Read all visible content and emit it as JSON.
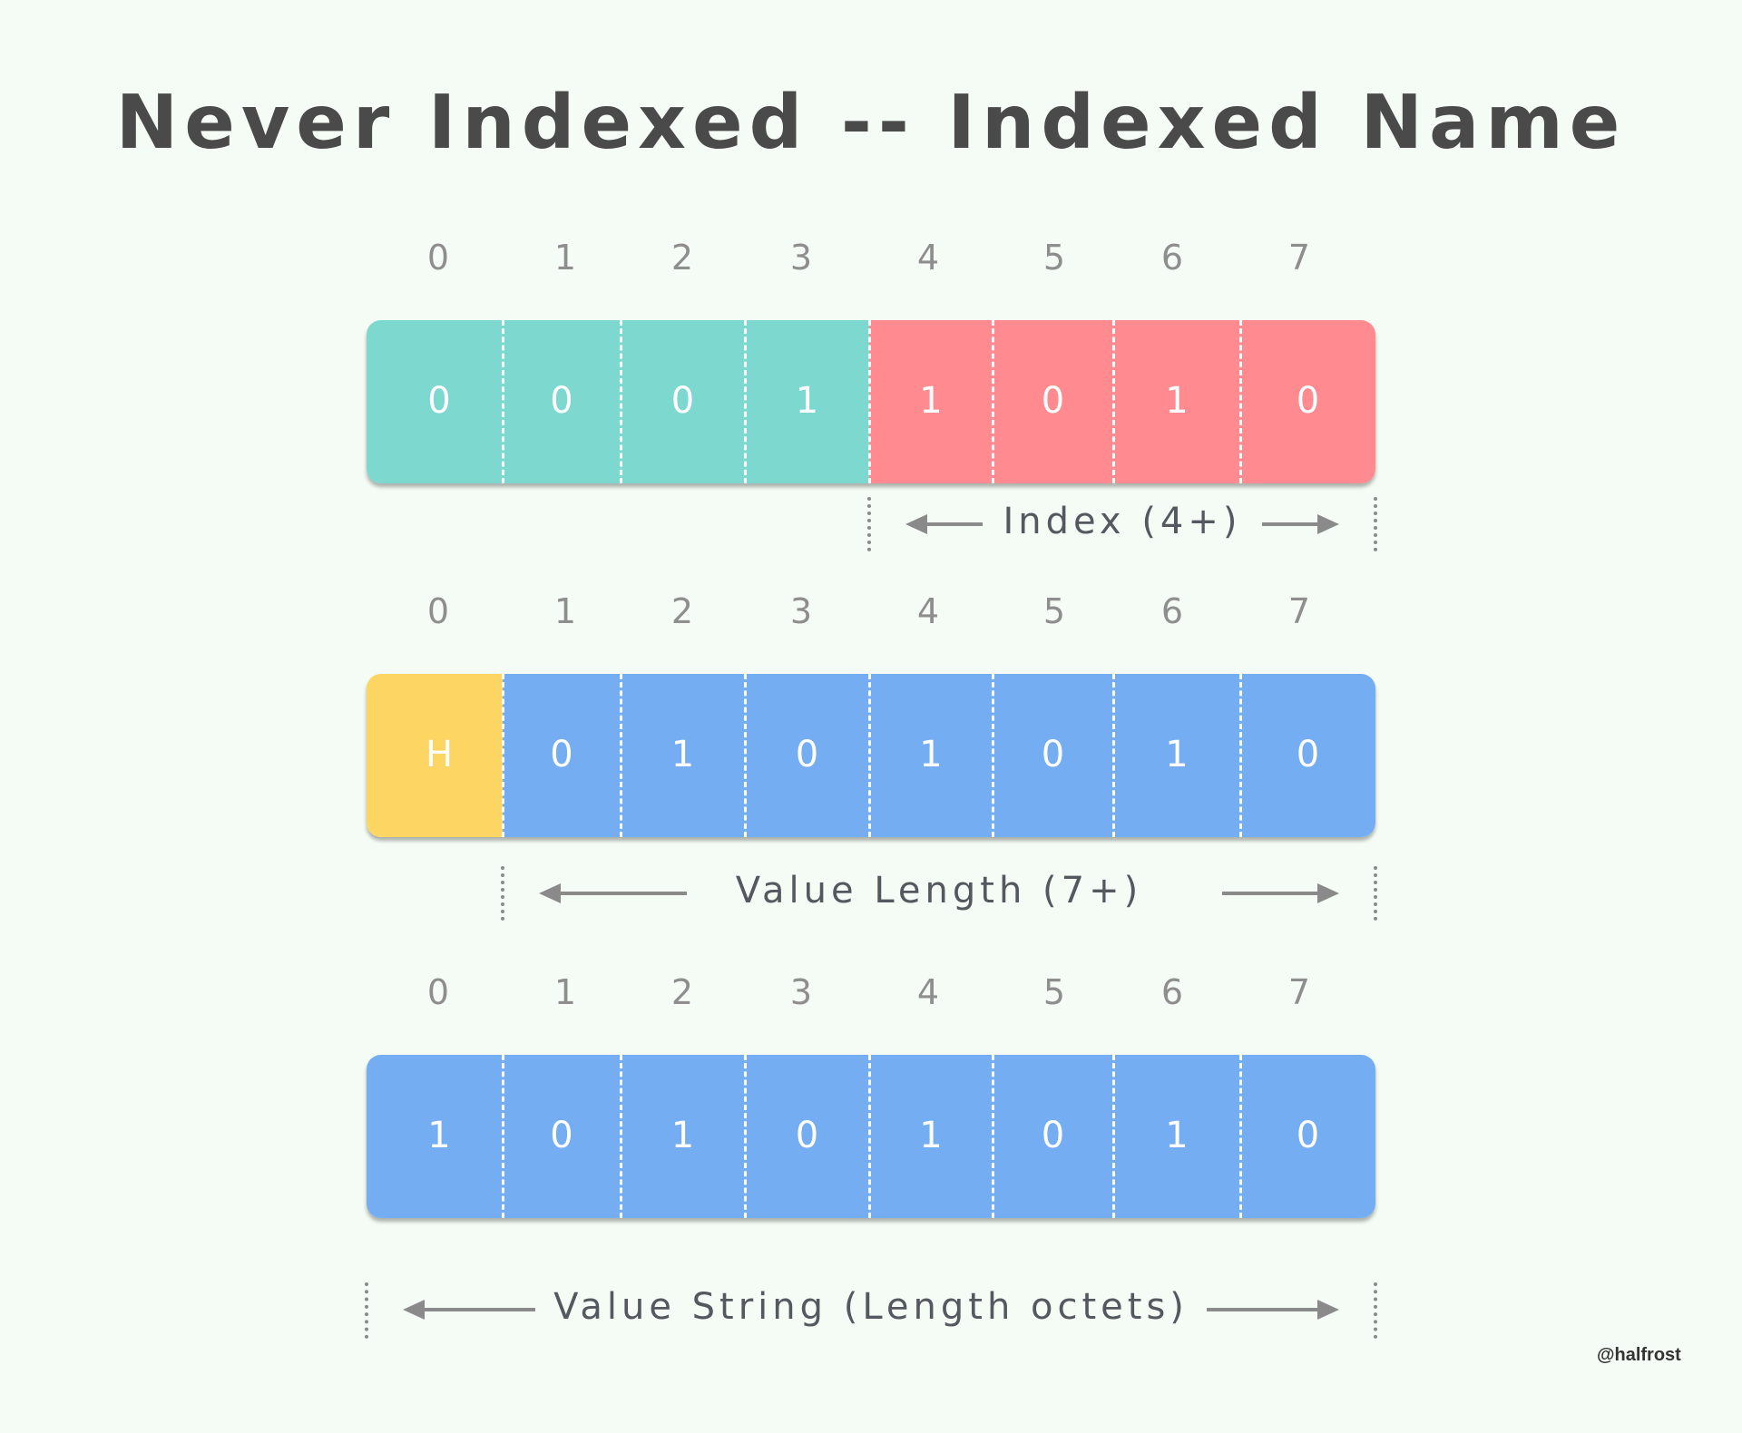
{
  "title": "Never Indexed -- Indexed Name",
  "bit_positions": [
    "0",
    "1",
    "2",
    "3",
    "4",
    "5",
    "6",
    "7"
  ],
  "colors": {
    "prefix_teal": "#7dd8cf",
    "index_pink": "#ff8a8f",
    "huffman_yellow": "#fdd563",
    "value_blue": "#74adf2"
  },
  "rows": [
    {
      "bits": [
        "0",
        "0",
        "0",
        "1",
        "1",
        "0",
        "1",
        "0"
      ],
      "segments": [
        {
          "color": "prefix_teal",
          "from_bit": 0,
          "to_bit": 4
        },
        {
          "color": "index_pink",
          "from_bit": 4,
          "to_bit": 8
        }
      ],
      "span": {
        "label": "Index (4+)",
        "from_bit": 4,
        "to_bit": 8
      }
    },
    {
      "bits": [
        "H",
        "0",
        "1",
        "0",
        "1",
        "0",
        "1",
        "0"
      ],
      "segments": [
        {
          "color": "huffman_yellow",
          "from_bit": 0,
          "to_bit": 1
        },
        {
          "color": "value_blue",
          "from_bit": 1,
          "to_bit": 8
        }
      ],
      "span": {
        "label": "Value Length (7+)",
        "from_bit": 1,
        "to_bit": 8
      }
    },
    {
      "bits": [
        "1",
        "0",
        "1",
        "0",
        "1",
        "0",
        "1",
        "0"
      ],
      "segments": [
        {
          "color": "value_blue",
          "from_bit": 0,
          "to_bit": 8
        }
      ],
      "span": {
        "label": "Value String (Length octets)",
        "from_bit": 0,
        "to_bit": 8
      }
    }
  ],
  "credit": "@halfrost"
}
